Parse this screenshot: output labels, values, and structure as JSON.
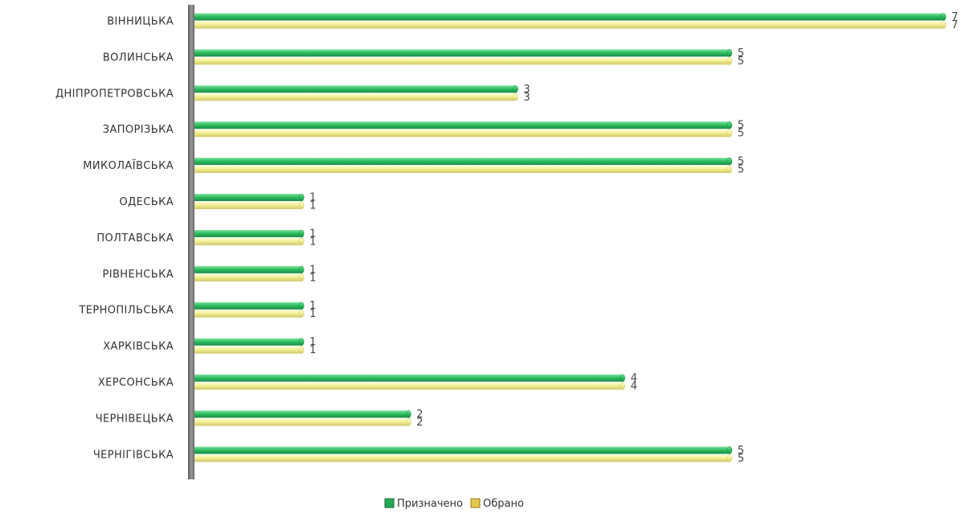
{
  "chart_data": {
    "type": "bar",
    "orientation": "horizontal",
    "categories": [
      "ВІННИЦЬКА",
      "ВОЛИНСЬКА",
      "ДНІПРОПЕТРОВСЬКА",
      "ЗАПОРІЗЬКА",
      "МИКОЛАЇВСЬКА",
      "ОДЕСЬКА",
      "ПОЛТАВСЬКА",
      "РІВНЕНСЬКА",
      "ТЕРНОПІЛЬСЬКА",
      "ХАРКІВСЬКА",
      "ХЕРСОНСЬКА",
      "ЧЕРНІВЕЦЬКА",
      "ЧЕРНІГІВСЬКА"
    ],
    "series": [
      {
        "name": "Призначено",
        "color": "#2db85c",
        "values": [
          7,
          5,
          3,
          5,
          5,
          1,
          1,
          1,
          1,
          1,
          4,
          2,
          5
        ]
      },
      {
        "name": "Обрано",
        "color": "#f3ef94",
        "values": [
          7,
          5,
          3,
          5,
          5,
          1,
          1,
          1,
          1,
          1,
          4,
          2,
          5
        ]
      }
    ],
    "xlim": [
      0,
      7
    ],
    "grid": false,
    "legend_position": "bottom-center"
  }
}
